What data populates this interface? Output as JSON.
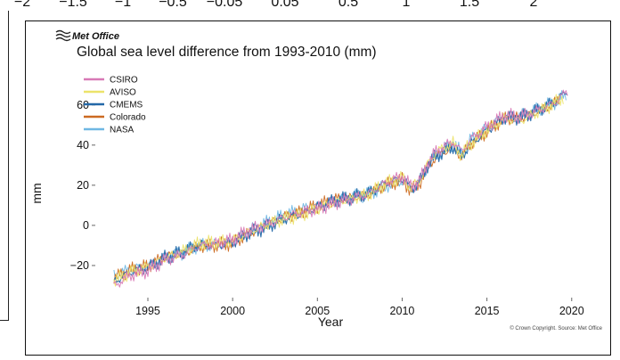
{
  "top_strip": {
    "tick_labels": [
      "−2",
      "−1.5",
      "−1",
      "−0.5",
      "−0.05",
      "0.05",
      "0.5",
      "1",
      "1.5",
      "2"
    ]
  },
  "logo": {
    "text": "Met Office"
  },
  "footer": {
    "copyright": "© Crown Copyright. Source: Met Office"
  },
  "colors": {
    "CSIRO": "#d879b6",
    "AVISO": "#ece36a",
    "CMEMS": "#2368a8",
    "Colorado": "#cc6a22",
    "NASA": "#6fb7e3"
  },
  "chart_data": {
    "type": "line",
    "title": "Global sea level difference from 1993-2010 (mm)",
    "xlabel": "Year",
    "ylabel": "mm",
    "xlim": [
      1991.9,
      2020.8
    ],
    "ylim": [
      -36,
      75
    ],
    "xticks": [
      1995,
      2000,
      2005,
      2010,
      2015,
      2020
    ],
    "yticks": [
      -20,
      0,
      20,
      40,
      60
    ],
    "grid": false,
    "legend_position": "top-left",
    "x": [
      1993,
      1994,
      1995,
      1996,
      1997,
      1998,
      1999,
      2000,
      2001,
      2002,
      2003,
      2004,
      2005,
      2006,
      2007,
      2008,
      2009,
      2010,
      2010.5,
      2011,
      2011.5,
      2012,
      2013,
      2013.5,
      2014,
      2015,
      2016,
      2017,
      2018,
      2019,
      2019.8
    ],
    "series": [
      {
        "name": "CSIRO",
        "end": 2019.8,
        "values": [
          -29,
          -24,
          -22,
          -17,
          -15,
          -11,
          -10,
          -8,
          -3,
          0,
          4,
          7,
          9,
          12,
          14,
          16,
          21,
          24,
          19,
          21,
          30,
          36,
          41,
          36,
          42,
          49,
          55,
          55,
          58,
          62,
          68
        ]
      },
      {
        "name": "AVISO",
        "end": 2019.5,
        "values": [
          -27,
          -23,
          -21,
          -17,
          -14,
          -10,
          -9,
          -8,
          -3,
          1,
          4,
          6,
          9,
          12,
          13,
          15,
          20,
          23,
          18,
          21,
          30,
          36,
          41,
          35,
          41,
          48,
          54,
          53,
          57,
          61,
          66
        ]
      },
      {
        "name": "CMEMS",
        "end": 2019.8,
        "values": [
          -28,
          -24,
          -22,
          -17,
          -14,
          -10,
          -10,
          -8,
          -3,
          0,
          4,
          6,
          9,
          12,
          13,
          15,
          20,
          23,
          18,
          21,
          30,
          35,
          40,
          35,
          41,
          48,
          54,
          54,
          57,
          61,
          66
        ]
      },
      {
        "name": "Colorado",
        "end": 2019.3,
        "values": [
          -27,
          -23,
          -21,
          -16,
          -14,
          -10,
          -9,
          -8,
          -3,
          1,
          4,
          6,
          9,
          12,
          13,
          15,
          20,
          23,
          18,
          21,
          30,
          35,
          40,
          35,
          41,
          47,
          53,
          53,
          56,
          60,
          65
        ]
      },
      {
        "name": "NASA",
        "end": 2019.7,
        "values": [
          -26,
          -22,
          -20,
          -16,
          -13,
          -9,
          -9,
          -7,
          -2,
          1,
          4,
          7,
          9,
          12,
          14,
          16,
          20,
          23,
          18,
          21,
          30,
          36,
          41,
          36,
          42,
          48,
          54,
          54,
          57,
          61,
          66
        ]
      }
    ]
  }
}
